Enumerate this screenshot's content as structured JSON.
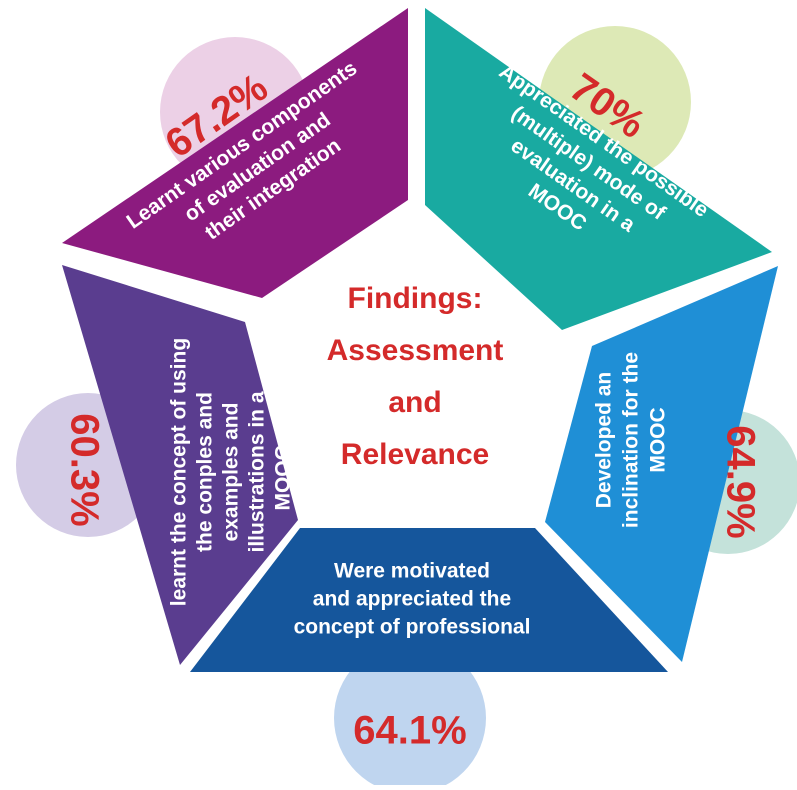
{
  "title": [
    "Findings:",
    "Assessment",
    "and",
    "Relevance"
  ],
  "segments": [
    {
      "lines": [
        "Learnt various components",
        "of evaluation and",
        "their integration"
      ],
      "percent": "67.2%"
    },
    {
      "lines": [
        "Appreciated the possible",
        "(multiple) mode of",
        "evaluation in a",
        "MOOC"
      ],
      "percent": "70%"
    },
    {
      "lines": [
        "Developed an",
        "inclination for the",
        "MOOC"
      ],
      "percent": "64.9%"
    },
    {
      "lines": [
        "Were motivated",
        "and appreciated the",
        "concept of professional"
      ],
      "percent": "64.1%"
    },
    {
      "lines": [
        "learnt the concept of using",
        "the conples and",
        "examples and",
        "illustrations in a",
        "MOOCs"
      ],
      "percent": "60.3%"
    }
  ]
}
